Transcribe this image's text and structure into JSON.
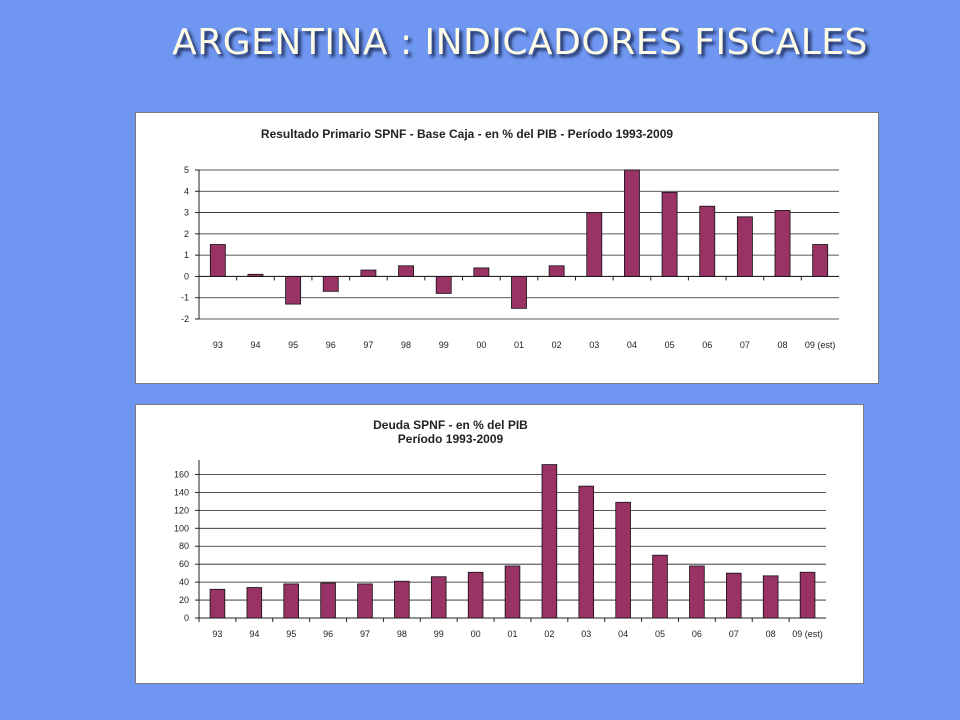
{
  "slide": {
    "title": "ARGENTINA : INDICADORES FISCALES"
  },
  "chart_data": [
    {
      "type": "bar",
      "title": "Resultado Primario SPNF - Base Caja - en % del PIB - Período 1993-2009",
      "xlabel": "",
      "ylabel": "",
      "categories": [
        "93",
        "94",
        "95",
        "96",
        "97",
        "98",
        "99",
        "00",
        "01",
        "02",
        "03",
        "04",
        "05",
        "06",
        "07",
        "08",
        "09 (est)"
      ],
      "values": [
        1.5,
        0.1,
        -1.3,
        -0.7,
        0.3,
        0.5,
        -0.8,
        0.4,
        -1.5,
        0.5,
        3.0,
        5.0,
        3.95,
        3.3,
        2.8,
        3.1,
        1.5
      ],
      "ylim": [
        -2,
        5
      ],
      "yticks": [
        "5",
        "4",
        "3",
        "2",
        "1",
        "0",
        "-1",
        "-2"
      ],
      "grid": true,
      "bar_color": "#993366"
    },
    {
      "type": "bar",
      "title": [
        "Deuda SPNF - en % del PIB",
        "Período 1993-2009"
      ],
      "xlabel": "",
      "ylabel": "",
      "categories": [
        "93",
        "94",
        "95",
        "96",
        "97",
        "98",
        "99",
        "00",
        "01",
        "02",
        "03",
        "04",
        "05",
        "06",
        "07",
        "08",
        "09 (est)"
      ],
      "values": [
        32,
        34,
        38,
        39,
        38,
        41,
        46,
        51,
        58,
        171,
        147,
        129,
        70,
        58,
        50,
        47,
        51
      ],
      "ylim": [
        0,
        170
      ],
      "yticks": [
        "160",
        "140",
        "120",
        "100",
        "80",
        "60",
        "40",
        "20",
        "0"
      ],
      "grid": true,
      "bar_color": "#993366"
    }
  ]
}
